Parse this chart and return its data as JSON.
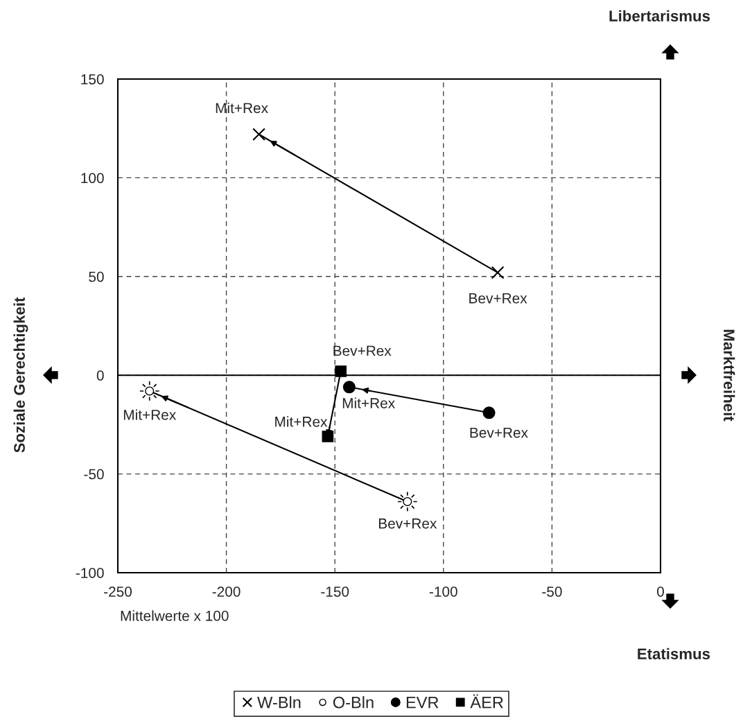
{
  "chart_data": {
    "type": "line",
    "ylabel": "Soziale Gerechtigkeit",
    "y2label": "Marktfreiheit",
    "annotations": [
      "Libertarismus",
      "Etatismus",
      "Mittelwerte x 100"
    ],
    "series": [
      {
        "name": "W-Bln",
        "color": "#000000",
        "marker": "cross",
        "x": [
          -75,
          -185
        ],
        "values": [
          52,
          122
        ],
        "value_labels": [
          "Bev+Rex",
          "Mit+Rex"
        ]
      },
      {
        "name": "O-Bln",
        "color": "#ffffff",
        "marker": "circle",
        "x": [
          -116.6,
          -235.4
        ],
        "values": [
          -64,
          -8
        ],
        "value_labels": [
          "Bev+Rex",
          "Mit+Rex"
        ]
      },
      {
        "name": "EVR",
        "color": "#000000",
        "marker": "circle",
        "x": [
          -79,
          -143.4
        ],
        "values": [
          -19,
          -6
        ],
        "value_labels": [
          "Bev+Rex",
          "Mit+Rex"
        ]
      },
      {
        "name": "ÄER",
        "color": "#000000",
        "marker": "square",
        "x": [
          -147.3,
          -153.3
        ],
        "values": [
          2,
          -31
        ],
        "value_labels": [
          "Bev+Rex",
          "Mit+Rex"
        ]
      }
    ],
    "xlim": [
      -250,
      0
    ],
    "ylim": [
      -100,
      150
    ],
    "xticks": [
      -250,
      -200,
      -150,
      -100,
      -50,
      0
    ],
    "yticks": [
      -100,
      -50,
      0,
      50,
      100,
      150
    ],
    "ref_lines": [
      {
        "axis": "y",
        "value": 0,
        "color": "#000000",
        "line_style": "solid"
      }
    ],
    "grid": true,
    "legend": "bottom"
  }
}
